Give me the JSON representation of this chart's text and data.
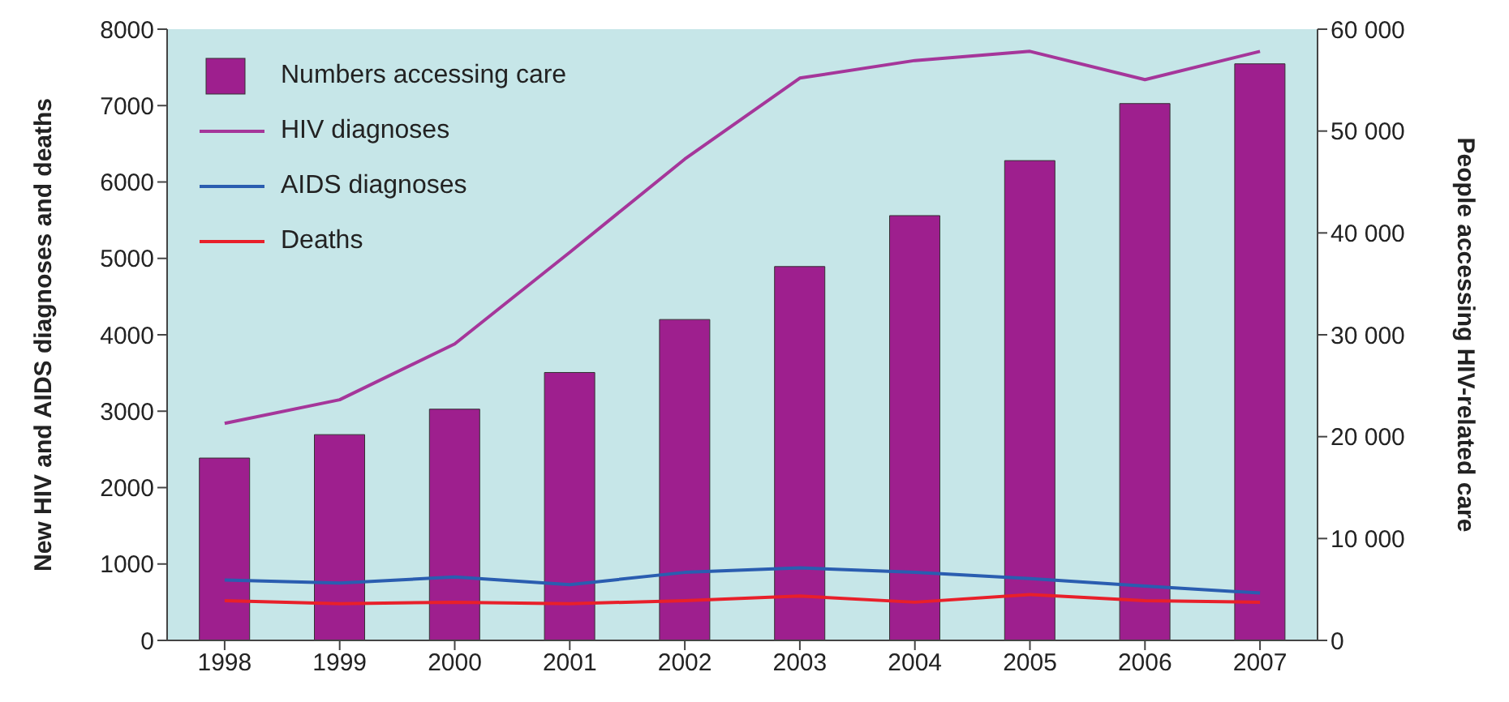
{
  "chart_data": {
    "type": "bar",
    "ylabel": "New HIV and AIDS diagnoses and deaths",
    "y2label": "People accessing HIV-related care",
    "categories": [
      "1998",
      "1999",
      "2000",
      "2001",
      "2002",
      "2003",
      "2004",
      "2005",
      "2006",
      "2007"
    ],
    "series": [
      {
        "name": "Numbers accessing care",
        "axis": "y2",
        "color": "#9e1f8e",
        "values": [
          17900,
          20200,
          22700,
          26300,
          31500,
          36700,
          41700,
          47100,
          52700,
          56600
        ]
      },
      {
        "name": "HIV diagnoses",
        "type": "line",
        "color": "#a5369a",
        "values": [
          2840,
          3150,
          3880,
          5080,
          6300,
          7360,
          7590,
          7710,
          7340,
          7710
        ]
      },
      {
        "name": "AIDS diagnoses",
        "type": "line",
        "color": "#2a5db0",
        "values": [
          790,
          750,
          830,
          730,
          890,
          950,
          890,
          810,
          710,
          620
        ]
      },
      {
        "name": "Deaths",
        "type": "line",
        "color": "#e8202a",
        "values": [
          520,
          480,
          500,
          480,
          520,
          580,
          500,
          600,
          520,
          500
        ]
      }
    ],
    "ylim": [
      0,
      8000
    ],
    "yticks": [
      0,
      1000,
      2000,
      3000,
      4000,
      5000,
      6000,
      7000,
      8000
    ],
    "y2lim": [
      0,
      60000
    ],
    "y2ticks": [
      0,
      10000,
      20000,
      30000,
      40000,
      50000,
      60000
    ],
    "legend": "top left",
    "grid": false,
    "marker": "none"
  }
}
